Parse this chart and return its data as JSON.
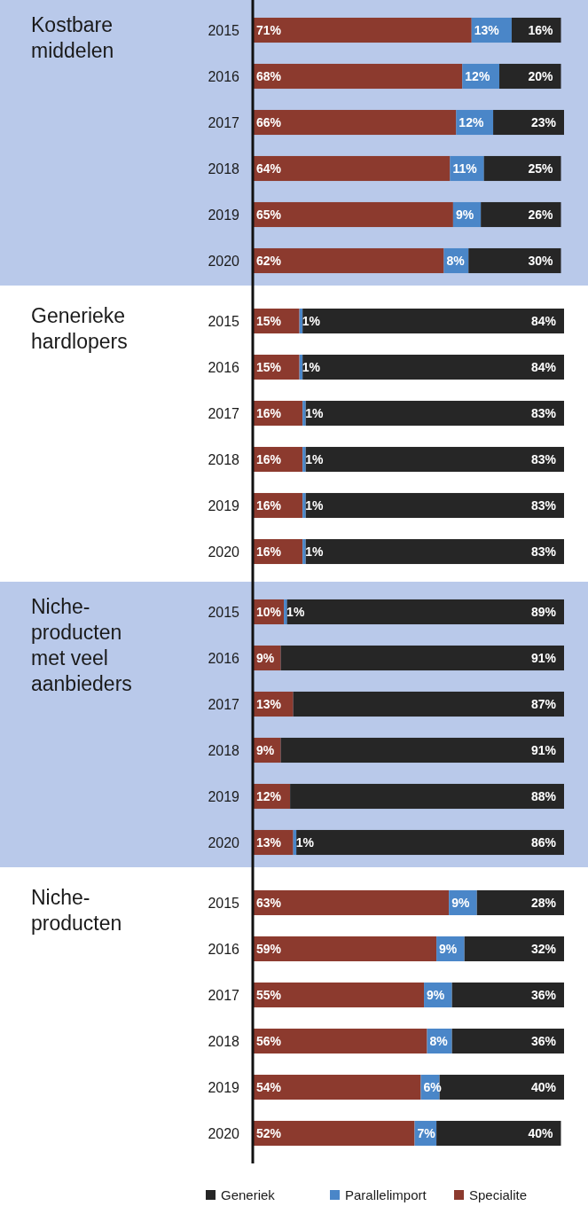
{
  "chart_data": [
    {
      "type": "bar",
      "title": "Kostbare middelen",
      "orientation": "horizontal",
      "stacked": true,
      "categories": [
        "2015",
        "2016",
        "2017",
        "2018",
        "2019",
        "2020"
      ],
      "xlim": [
        0,
        101
      ],
      "tick_labels": "y",
      "legend": "bottom",
      "series": [
        {
          "name": "Specialite",
          "color": "#8c3a2e",
          "values": [
            71,
            68,
            66,
            64,
            65,
            62
          ],
          "value_labels": [
            "71%",
            "68%",
            "66%",
            "64%",
            "65%",
            "62%"
          ]
        },
        {
          "name": "Parallelimport",
          "color": "#4a86c8",
          "values": [
            13,
            12,
            12,
            11,
            9,
            8
          ],
          "value_labels": [
            "13%",
            "12%",
            "12%",
            "11%",
            "9%",
            "8%"
          ]
        },
        {
          "name": "Generiek",
          "color": "#262626",
          "values": [
            16,
            20,
            23,
            25,
            26,
            30
          ],
          "value_labels": [
            "16%",
            "20%",
            "23%",
            "25%",
            "26%",
            "30%"
          ]
        }
      ]
    },
    {
      "type": "bar",
      "title": "Generieke hardlopers",
      "orientation": "horizontal",
      "stacked": true,
      "categories": [
        "2015",
        "2016",
        "2017",
        "2018",
        "2019",
        "2020"
      ],
      "xlim": [
        0,
        100
      ],
      "tick_labels": "y",
      "legend": "bottom",
      "series": [
        {
          "name": "Specialite",
          "color": "#8c3a2e",
          "values": [
            15,
            15,
            16,
            16,
            16,
            16
          ],
          "value_labels": [
            "15%",
            "15%",
            "16%",
            "16%",
            "16%",
            "16%"
          ]
        },
        {
          "name": "Parallelimport",
          "color": "#4a86c8",
          "values": [
            1,
            1,
            1,
            1,
            1,
            1
          ],
          "value_labels": [
            "1%",
            "1%",
            "1%",
            "1%",
            "1%",
            "1%"
          ]
        },
        {
          "name": "Generiek",
          "color": "#262626",
          "values": [
            84,
            84,
            83,
            83,
            83,
            83
          ],
          "value_labels": [
            "84%",
            "84%",
            "83%",
            "83%",
            "83%",
            "83%"
          ]
        }
      ]
    },
    {
      "type": "bar",
      "title": "Niche-producten met veel aanbieders",
      "orientation": "horizontal",
      "stacked": true,
      "categories": [
        "2015",
        "2016",
        "2017",
        "2018",
        "2019",
        "2020"
      ],
      "xlim": [
        0,
        100
      ],
      "tick_labels": "y",
      "legend": "bottom",
      "series": [
        {
          "name": "Specialite",
          "color": "#8c3a2e",
          "values": [
            10,
            9,
            13,
            9,
            12,
            13
          ],
          "value_labels": [
            "10%",
            "9%",
            "13%",
            "9%",
            "12%",
            "13%"
          ]
        },
        {
          "name": "Parallelimport",
          "color": "#4a86c8",
          "values": [
            1,
            0,
            0,
            0,
            0,
            1
          ],
          "value_labels": [
            "1%",
            null,
            null,
            null,
            null,
            "1%"
          ]
        },
        {
          "name": "Generiek",
          "color": "#262626",
          "values": [
            89,
            91,
            87,
            91,
            88,
            86
          ],
          "value_labels": [
            "89%",
            "91%",
            "87%",
            "91%",
            "88%",
            "86%"
          ]
        }
      ]
    },
    {
      "type": "bar",
      "title": "Niche-producten",
      "orientation": "horizontal",
      "stacked": true,
      "categories": [
        "2015",
        "2016",
        "2017",
        "2018",
        "2019",
        "2020"
      ],
      "xlim": [
        0,
        100
      ],
      "tick_labels": "y",
      "legend": "bottom",
      "series": [
        {
          "name": "Specialite",
          "color": "#8c3a2e",
          "values": [
            63,
            59,
            55,
            56,
            54,
            52
          ],
          "value_labels": [
            "63%",
            "59%",
            "55%",
            "56%",
            "54%",
            "52%"
          ]
        },
        {
          "name": "Parallelimport",
          "color": "#4a86c8",
          "values": [
            9,
            9,
            9,
            8,
            6,
            7
          ],
          "value_labels": [
            "9%",
            "9%",
            "9%",
            "8%",
            "6%",
            "7%"
          ]
        },
        {
          "name": "Generiek",
          "color": "#262626",
          "values": [
            28,
            32,
            36,
            36,
            40,
            40
          ],
          "value_labels": [
            "28%",
            "32%",
            "36%",
            "36%",
            "40%",
            "40%"
          ]
        }
      ]
    }
  ]
}
